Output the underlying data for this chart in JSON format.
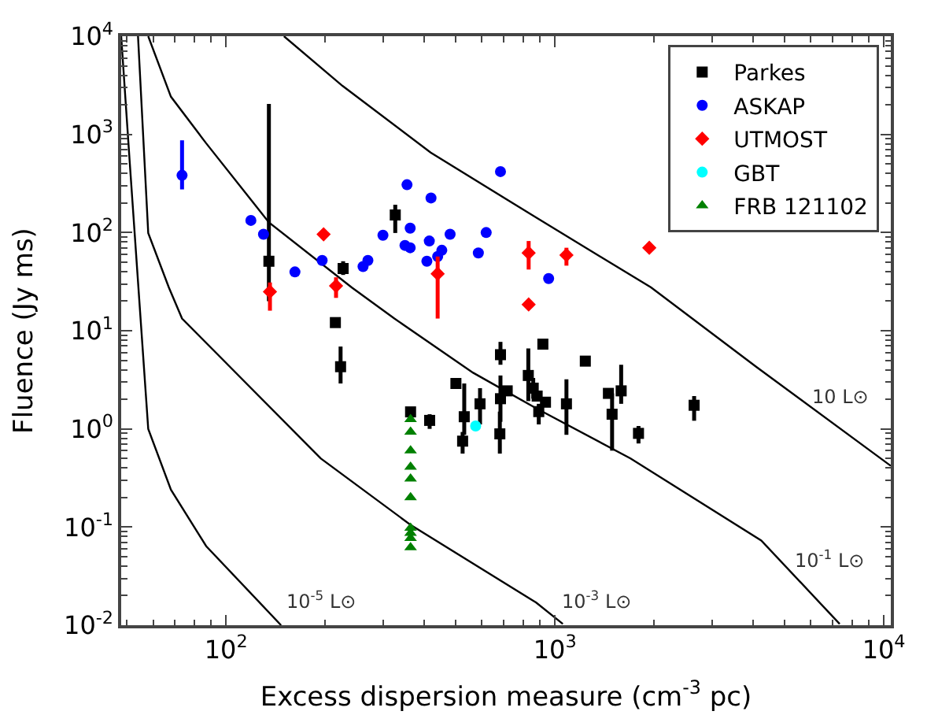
{
  "chart_data": {
    "type": "scatter",
    "xlabel": "Excess dispersion measure (cm$^{-3}$ pc)",
    "ylabel": "Fluence (Jy ms)",
    "log": "xy",
    "grid": false,
    "legend": "top right",
    "xlim": [
      48,
      10500
    ],
    "ylim": [
      0.01,
      10000
    ],
    "xticks": [
      {
        "value": 100,
        "label": "10$^{2}$"
      },
      {
        "value": 1000,
        "label": "10$^{3}$"
      },
      {
        "value": 10000,
        "label": "10$^{4}$"
      }
    ],
    "yticks": [
      {
        "value": 0.01,
        "label": "10$^{-2}$"
      },
      {
        "value": 0.1,
        "label": "10$^{-1}$"
      },
      {
        "value": 1,
        "label": "10$^{0}$"
      },
      {
        "value": 10,
        "label": "10$^{1}$"
      },
      {
        "value": 100,
        "label": "10$^{2}$"
      },
      {
        "value": 1000,
        "label": "10$^{3}$"
      },
      {
        "value": 10000,
        "label": "10$^{4}$"
      }
    ],
    "series": [
      {
        "type": "line",
        "name": "10$^{-5}$ L⊙",
        "color": "#000000",
        "marker": "none",
        "x": [
          48,
          51,
          55,
          58,
          68,
          87,
          147
        ],
        "values": [
          10000,
          500,
          13,
          1.0,
          0.24,
          0.064,
          0.01
        ]
      },
      {
        "type": "line",
        "name": "10$^{-3}$ L⊙",
        "color": "#000000",
        "marker": "none",
        "x": [
          54,
          58,
          67,
          73.5,
          94,
          194,
          363,
          877,
          1057
        ],
        "values": [
          10000,
          99,
          27.6,
          13.3,
          5.8,
          0.5,
          0.106,
          0.017,
          0.0103
        ]
      },
      {
        "type": "line",
        "name": "10$^{-1}$ L⊙",
        "color": "#000000",
        "marker": "none",
        "x": [
          58,
          68,
          87,
          135,
          241,
          325,
          564,
          877,
          1698,
          4240,
          7340
        ],
        "values": [
          10000,
          2420,
          813,
          127,
          27.6,
          13.3,
          3.73,
          1.62,
          0.5,
          0.073,
          0.0103
        ]
      },
      {
        "type": "line",
        "name": "10 L⊙",
        "color": "#000000",
        "marker": "none",
        "x": [
          150,
          226,
          419,
          877,
          1960,
          4090,
          10500
        ],
        "values": [
          10000,
          3120,
          653,
          142,
          27.6,
          4.3,
          0.42
        ]
      },
      {
        "name": "Parkes",
        "color": "#000000",
        "marker": "square",
        "x": [
          135,
          227,
          327,
          215,
          223,
          364,
          416,
          500,
          524,
          530,
          592,
          683,
          683,
          680,
          716,
          830,
          919,
          859,
          883,
          893,
          936,
          1084,
          1237,
          1454,
          1492,
          1590,
          1795,
          2650
        ],
        "values": [
          51,
          43,
          151,
          12.1,
          4.3,
          1.49,
          1.22,
          2.9,
          0.75,
          1.33,
          1.8,
          5.7,
          2.03,
          0.89,
          2.44,
          3.5,
          7.3,
          2.6,
          2.16,
          1.5,
          1.87,
          1.8,
          4.9,
          2.3,
          1.41,
          2.44,
          0.9,
          1.74
        ],
        "errors": [
          [
            20,
            2040
          ],
          [
            37,
            51
          ],
          [
            99,
            192
          ],
          null,
          [
            2.9,
            6.9
          ],
          null,
          [
            1.0,
            1.41
          ],
          null,
          [
            0.56,
            0.93
          ],
          [
            0.87,
            2.9
          ],
          [
            1.11,
            2.6
          ],
          [
            4.5,
            7.7
          ],
          [
            1.18,
            3.5
          ],
          [
            0.56,
            1.5
          ],
          null,
          [
            1.92,
            6.6
          ],
          null,
          [
            2.03,
            3.3
          ],
          null,
          [
            1.11,
            1.8
          ],
          null,
          [
            0.87,
            3.2
          ],
          null,
          null,
          [
            0.6,
            2.3
          ],
          [
            1.8,
            4.5
          ],
          [
            0.71,
            1.07
          ],
          [
            1.21,
            2.16
          ]
        ]
      },
      {
        "name": "ASKAP",
        "color": "#0000ff",
        "marker": "circle",
        "x": [
          73.5,
          119,
          130,
          162,
          196,
          261,
          270,
          300,
          355,
          363,
          350,
          363,
          420,
          415,
          453,
          408,
          480,
          440,
          574,
          585,
          618,
          683,
          957
        ],
        "values": [
          383,
          133,
          96,
          39.7,
          52,
          45,
          52,
          94,
          307,
          111,
          74,
          70,
          225,
          82,
          66,
          51,
          96,
          57,
          null,
          62,
          100,
          418,
          34
        ],
        "errors": [
          [
            275,
            870
          ],
          null,
          null,
          null,
          null,
          null,
          null,
          null,
          null,
          null,
          null,
          null,
          null,
          null,
          null,
          null,
          null,
          null,
          null,
          null,
          null,
          null,
          null
        ]
      },
      {
        "name": "UTMOST",
        "color": "#ff0000",
        "marker": "diamond",
        "x": [
          136,
          198,
          216,
          440,
          832,
          832,
          1084,
          1936
        ],
        "values": [
          25,
          96,
          28.6,
          38,
          62,
          18.5,
          59,
          70
        ],
        "errors": [
          [
            16,
            31
          ],
          null,
          [
            21.6,
            35
          ],
          [
            13.3,
            57
          ],
          [
            42,
            82
          ],
          null,
          [
            46,
            70
          ],
          null
        ]
      },
      {
        "name": "GBT",
        "color": "#00ffff",
        "marker": "circle",
        "x": [
          574
        ],
        "values": [
          1.07
        ]
      },
      {
        "name": "FRB 121102",
        "color": "#008000",
        "marker": "triangle",
        "x": [
          364,
          364,
          364,
          364,
          364,
          364,
          364,
          364,
          364,
          364
        ],
        "values": [
          1.25,
          0.93,
          0.6,
          0.41,
          0.31,
          0.2,
          0.098,
          0.087,
          0.077,
          0.062
        ]
      }
    ]
  }
}
